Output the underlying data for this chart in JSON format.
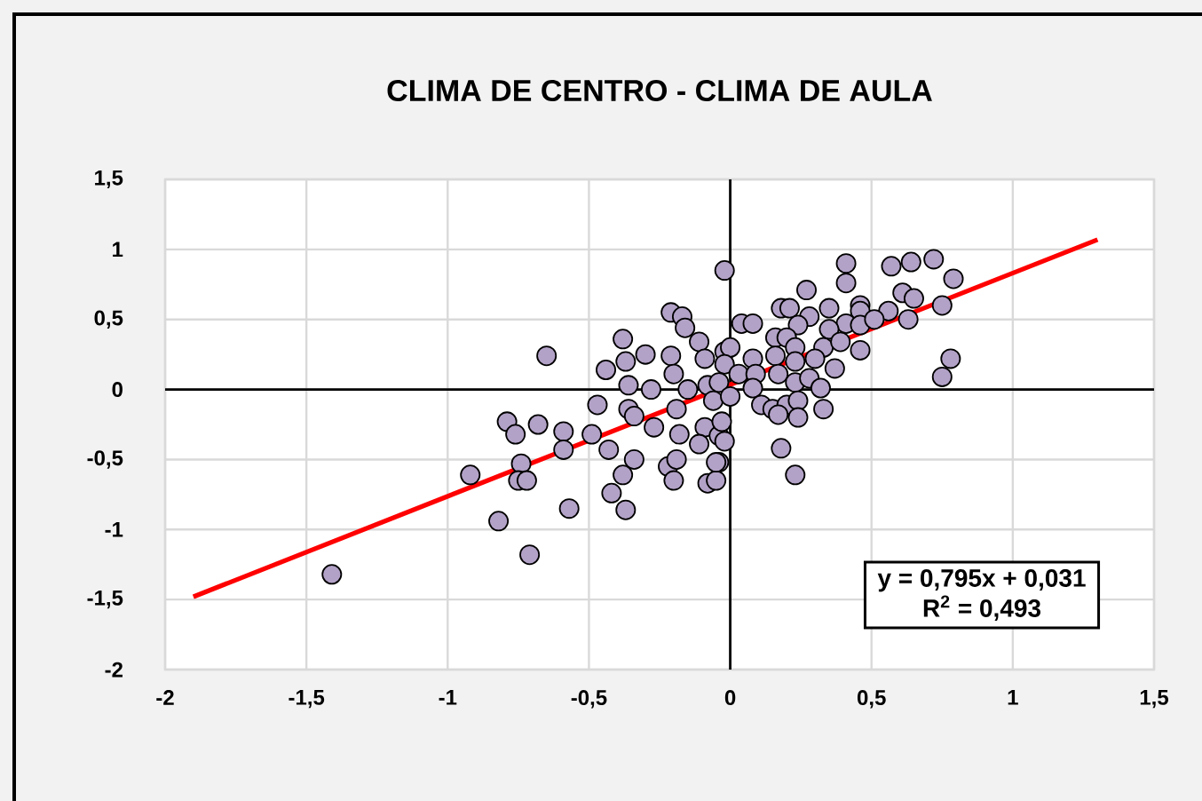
{
  "chart_data": {
    "type": "scatter",
    "title": "CLIMA DE CENTRO - CLIMA DE AULA",
    "xlim": [
      -2,
      1.5
    ],
    "ylim": [
      -2,
      1.5
    ],
    "xticks": [
      {
        "value": -2,
        "label": "-2"
      },
      {
        "value": -1.5,
        "label": "-1,5"
      },
      {
        "value": -1,
        "label": "-1"
      },
      {
        "value": -0.5,
        "label": "-0,5"
      },
      {
        "value": 0,
        "label": "0"
      },
      {
        "value": 0.5,
        "label": "0,5"
      },
      {
        "value": 1,
        "label": "1"
      },
      {
        "value": 1.5,
        "label": "1,5"
      }
    ],
    "yticks": [
      {
        "value": -2,
        "label": "-2"
      },
      {
        "value": -1.5,
        "label": "-1,5"
      },
      {
        "value": -1,
        "label": "-1"
      },
      {
        "value": -0.5,
        "label": "-0,5"
      },
      {
        "value": 0,
        "label": "0"
      },
      {
        "value": 0.5,
        "label": "0,5"
      },
      {
        "value": 1,
        "label": "1"
      },
      {
        "value": 1.5,
        "label": "1,5"
      }
    ],
    "grid": true,
    "marker": "circle",
    "annotations": [
      "y = 0,795x + 0,031",
      "R$^{2}$ = 0,493"
    ],
    "series": [
      {
        "color": "#b3a2c7",
        "x": [
          -0.02,
          -0.21,
          -0.17,
          -0.16,
          -0.11,
          -0.09,
          -0.02,
          -0.38,
          -0.3,
          -0.37,
          -0.44,
          -0.65,
          -0.21,
          -0.2,
          -0.36,
          -0.28,
          -0.15,
          -0.08,
          -0.47,
          -0.36,
          -0.34,
          -0.27,
          -0.19,
          -0.18,
          -0.09,
          -0.11,
          -0.04,
          -0.79,
          -0.76,
          -0.68,
          -0.59,
          -0.59,
          -0.49,
          -0.43,
          -0.34,
          -0.38,
          -0.42,
          -0.37,
          -0.57,
          -0.74,
          -0.75,
          -0.72,
          -0.92,
          -0.82,
          -0.71,
          -0.22,
          -0.19,
          -0.2,
          -0.08,
          -0.05,
          -0.04,
          -1.41,
          0.41,
          0.41,
          0.57,
          0.64,
          0.72,
          0.79,
          0.27,
          0.61,
          0.65,
          0.75,
          0.18,
          0.21,
          0.35,
          0.46,
          0.46,
          0.56,
          0.63,
          0.04,
          0.08,
          0.28,
          0.24,
          0.41,
          0.35,
          0.46,
          0.51,
          0.0,
          0.16,
          0.2,
          0.23,
          0.33,
          0.39,
          0.46,
          -0.02,
          0.08,
          0.16,
          0.23,
          0.3,
          0.37,
          0.03,
          0.09,
          0.17,
          0.23,
          0.28,
          0.32,
          0.08,
          -0.04,
          -0.06,
          0.0,
          0.11,
          0.15,
          0.2,
          0.24,
          0.24,
          0.33,
          0.17,
          -0.03,
          -0.02,
          -0.05,
          0.18,
          0.23,
          0.75,
          0.78
        ],
        "values": [
          0.85,
          0.55,
          0.52,
          0.44,
          0.34,
          0.22,
          0.27,
          0.36,
          0.25,
          0.2,
          0.14,
          0.24,
          0.24,
          0.11,
          0.03,
          0.0,
          0.0,
          0.03,
          -0.11,
          -0.14,
          -0.19,
          -0.27,
          -0.14,
          -0.32,
          -0.27,
          -0.39,
          -0.33,
          -0.23,
          -0.32,
          -0.25,
          -0.3,
          -0.43,
          -0.32,
          -0.43,
          -0.5,
          -0.61,
          -0.74,
          -0.86,
          -0.85,
          -0.53,
          -0.65,
          -0.65,
          -0.61,
          -0.94,
          -1.18,
          -0.55,
          -0.5,
          -0.65,
          -0.67,
          -0.65,
          -0.52,
          -1.32,
          0.9,
          0.76,
          0.88,
          0.91,
          0.93,
          0.79,
          0.71,
          0.69,
          0.65,
          0.6,
          0.58,
          0.58,
          0.58,
          0.6,
          0.56,
          0.56,
          0.5,
          0.47,
          0.47,
          0.52,
          0.46,
          0.47,
          0.43,
          0.46,
          0.5,
          0.3,
          0.37,
          0.37,
          0.3,
          0.3,
          0.34,
          0.28,
          0.18,
          0.22,
          0.24,
          0.2,
          0.22,
          0.15,
          0.11,
          0.11,
          0.11,
          0.05,
          0.08,
          0.01,
          0.01,
          0.05,
          -0.08,
          -0.05,
          -0.11,
          -0.14,
          -0.11,
          -0.08,
          -0.2,
          -0.14,
          -0.18,
          -0.23,
          -0.37,
          -0.52,
          -0.42,
          -0.61,
          0.09,
          0.22
        ]
      },
      {
        "type": "line",
        "color": "#ff0000",
        "marker": "none",
        "x": [
          -1.9,
          1.3
        ],
        "values": [
          -1.48,
          1.07
        ]
      }
    ]
  }
}
